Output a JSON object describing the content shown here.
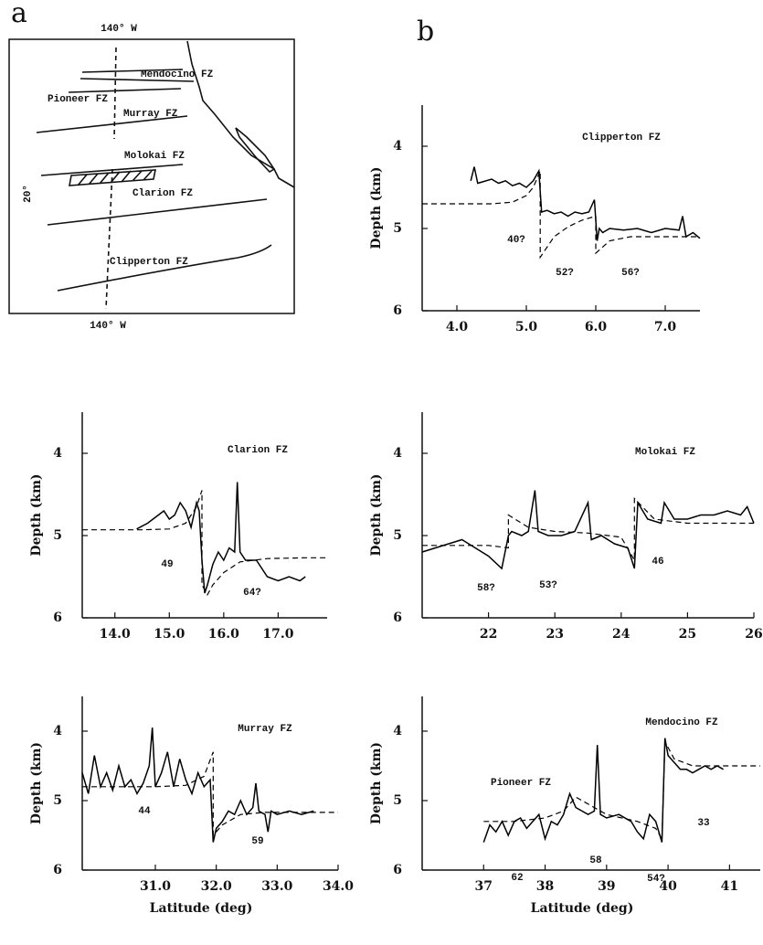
{
  "panel_labels": [
    "a",
    "b"
  ],
  "map": {
    "top_label": "140° W",
    "bottom_label": "140° W",
    "side_label": "20°",
    "zones": [
      "Mendocino FZ",
      "Pioneer FZ",
      "Murray FZ",
      "Molokai FZ",
      "Clarion FZ",
      "Clipperton FZ"
    ]
  },
  "chart_data": [
    {
      "type": "line",
      "title": "Clipperton FZ",
      "ylabel": "Depth (km)",
      "xlim": [
        3.5,
        7.5
      ],
      "ylim": [
        6,
        3.5
      ],
      "yticks": [
        4,
        5,
        6
      ],
      "xticks": [
        {
          "value": 4,
          "label": "4.0"
        },
        {
          "value": 5,
          "label": "5.0"
        },
        {
          "value": 6,
          "label": "6.0"
        },
        {
          "value": 7,
          "label": "7.0"
        }
      ],
      "annotations": [
        "40?",
        "52?",
        "56?"
      ],
      "series": [
        {
          "color": "#000",
          "dashed": false,
          "x": [
            4.2,
            4.25,
            4.3,
            4.5,
            4.6,
            4.7,
            4.8,
            4.9,
            5.0,
            5.1,
            5.18,
            5.22,
            5.3,
            5.4,
            5.5,
            5.6,
            5.7,
            5.8,
            5.9,
            5.98,
            6.02,
            6.05,
            6.1,
            6.2,
            6.4,
            6.6,
            6.8,
            7.0,
            7.2,
            7.25,
            7.3,
            7.4,
            7.5
          ],
          "values": [
            4.42,
            4.25,
            4.45,
            4.4,
            4.45,
            4.42,
            4.48,
            4.45,
            4.5,
            4.42,
            4.3,
            4.8,
            4.78,
            4.82,
            4.8,
            4.85,
            4.8,
            4.82,
            4.8,
            4.65,
            5.15,
            5.0,
            5.05,
            5.0,
            5.02,
            5.0,
            5.05,
            5.0,
            5.02,
            4.85,
            5.1,
            5.05,
            5.12
          ]
        },
        {
          "color": "#000",
          "dashed": true,
          "x": [
            3.5,
            4.5,
            4.8,
            5.0,
            5.1,
            5.2,
            5.2,
            5.4,
            5.6,
            5.8,
            6.0,
            6.0,
            6.2,
            6.5,
            7.0,
            7.5
          ],
          "values": [
            4.7,
            4.7,
            4.68,
            4.6,
            4.5,
            4.3,
            5.35,
            5.1,
            4.98,
            4.9,
            4.85,
            5.3,
            5.15,
            5.1,
            5.1,
            5.1
          ]
        }
      ]
    },
    {
      "type": "line",
      "title": "Clarion FZ",
      "ylabel": "Depth (km)",
      "xlim": [
        13.4,
        17.9
      ],
      "ylim": [
        6,
        3.5
      ],
      "yticks": [
        4,
        5,
        6
      ],
      "xticks": [
        {
          "value": 14,
          "label": "14.0"
        },
        {
          "value": 15,
          "label": "15.0"
        },
        {
          "value": 16,
          "label": "16.0"
        },
        {
          "value": 17,
          "label": "17.0"
        }
      ],
      "annotations": [
        "49",
        "64?"
      ],
      "series": [
        {
          "color": "#000",
          "dashed": false,
          "x": [
            14.4,
            14.6,
            14.8,
            14.9,
            15.0,
            15.1,
            15.2,
            15.3,
            15.4,
            15.5,
            15.55,
            15.6,
            15.65,
            15.7,
            15.8,
            15.9,
            16.0,
            16.1,
            16.2,
            16.25,
            16.3,
            16.4,
            16.6,
            16.8,
            17.0,
            17.2,
            17.4,
            17.5
          ],
          "values": [
            4.92,
            4.85,
            4.75,
            4.7,
            4.8,
            4.75,
            4.6,
            4.7,
            4.9,
            4.6,
            4.7,
            5.3,
            5.7,
            5.6,
            5.35,
            5.2,
            5.3,
            5.15,
            5.2,
            4.35,
            5.2,
            5.3,
            5.3,
            5.5,
            5.55,
            5.5,
            5.55,
            5.5
          ]
        },
        {
          "color": "#000",
          "dashed": true,
          "x": [
            13.4,
            14.5,
            15.0,
            15.3,
            15.5,
            15.6,
            15.6,
            15.7,
            15.8,
            16.0,
            16.3,
            16.8,
            17.5,
            17.9
          ],
          "values": [
            4.93,
            4.93,
            4.92,
            4.85,
            4.65,
            4.45,
            5.6,
            5.72,
            5.6,
            5.45,
            5.32,
            5.28,
            5.27,
            5.27
          ]
        }
      ]
    },
    {
      "type": "line",
      "title": "Molokai FZ",
      "ylabel": "Depth (km)",
      "xlim": [
        21,
        26
      ],
      "ylim": [
        6,
        3.5
      ],
      "yticks": [
        4,
        5,
        6
      ],
      "xticks": [
        22,
        23,
        24,
        25,
        26
      ],
      "annotations": [
        "58?",
        "53?",
        "46"
      ],
      "series": [
        {
          "color": "#000",
          "dashed": false,
          "x": [
            21.0,
            21.2,
            21.4,
            21.6,
            21.8,
            22.0,
            22.2,
            22.3,
            22.35,
            22.5,
            22.6,
            22.7,
            22.75,
            22.9,
            23.1,
            23.3,
            23.5,
            23.55,
            23.7,
            23.9,
            24.1,
            24.2,
            24.25,
            24.4,
            24.6,
            24.65,
            24.8,
            25.0,
            25.2,
            25.4,
            25.6,
            25.8,
            25.9,
            26.0
          ],
          "values": [
            5.2,
            5.15,
            5.1,
            5.05,
            5.15,
            5.25,
            5.4,
            5.0,
            4.95,
            5.0,
            4.95,
            4.45,
            4.95,
            5.0,
            5.0,
            4.95,
            4.6,
            5.05,
            5.0,
            5.1,
            5.15,
            5.4,
            4.6,
            4.8,
            4.85,
            4.6,
            4.8,
            4.8,
            4.75,
            4.75,
            4.7,
            4.75,
            4.65,
            4.85
          ]
        },
        {
          "color": "#000",
          "dashed": true,
          "x": [
            21,
            22,
            22.3,
            22.3,
            22.6,
            23,
            23.5,
            24,
            24.2,
            24.2,
            24.5,
            25,
            26
          ],
          "values": [
            5.12,
            5.12,
            5.15,
            4.75,
            4.9,
            4.95,
            4.97,
            5.02,
            5.3,
            4.55,
            4.8,
            4.85,
            4.85
          ]
        }
      ]
    },
    {
      "type": "line",
      "title": "Murray FZ",
      "ylabel": "Depth (km)",
      "xlabel": "Latitude (deg)",
      "xlim": [
        29.8,
        34.0
      ],
      "ylim": [
        6,
        3.5
      ],
      "yticks": [
        4,
        5,
        6
      ],
      "xticks": [
        {
          "value": 31,
          "label": "31.0"
        },
        {
          "value": 32,
          "label": "32.0"
        },
        {
          "value": 33,
          "label": "33.0"
        },
        {
          "value": 34,
          "label": "34.0"
        }
      ],
      "annotations": [
        "44",
        "59"
      ],
      "series": [
        {
          "color": "#000",
          "dashed": false,
          "x": [
            29.8,
            29.9,
            30.0,
            30.1,
            30.2,
            30.3,
            30.4,
            30.5,
            30.6,
            30.7,
            30.8,
            30.9,
            30.95,
            31.0,
            31.1,
            31.2,
            31.3,
            31.4,
            31.5,
            31.6,
            31.7,
            31.8,
            31.9,
            31.95,
            32.0,
            32.1,
            32.2,
            32.3,
            32.4,
            32.5,
            32.6,
            32.65,
            32.7,
            32.8,
            32.85,
            32.9,
            33.0,
            33.2,
            33.4,
            33.6
          ],
          "values": [
            4.6,
            4.9,
            4.35,
            4.8,
            4.6,
            4.85,
            4.5,
            4.8,
            4.7,
            4.9,
            4.75,
            4.5,
            3.95,
            4.8,
            4.6,
            4.3,
            4.8,
            4.4,
            4.7,
            4.9,
            4.6,
            4.8,
            4.7,
            5.6,
            5.4,
            5.3,
            5.15,
            5.2,
            5.0,
            5.2,
            5.1,
            4.75,
            5.15,
            5.2,
            5.45,
            5.15,
            5.2,
            5.15,
            5.2,
            5.15
          ]
        },
        {
          "color": "#000",
          "dashed": true,
          "x": [
            29.8,
            30.5,
            31.0,
            31.5,
            31.8,
            31.95,
            31.95,
            32.1,
            32.4,
            32.8,
            33.5,
            34.0
          ],
          "values": [
            4.8,
            4.8,
            4.8,
            4.78,
            4.65,
            4.3,
            5.5,
            5.35,
            5.2,
            5.17,
            5.17,
            5.17
          ]
        }
      ]
    },
    {
      "type": "line",
      "title": "Mendocino FZ",
      "ylabel": "Depth (km)",
      "xlabel": "Latitude (deg)",
      "xlim": [
        36,
        41.5
      ],
      "ylim": [
        6,
        3.5
      ],
      "yticks": [
        4,
        5,
        6
      ],
      "xticks": [
        37,
        38,
        39,
        40,
        41
      ],
      "annotations": [
        "Pioneer FZ",
        "62",
        "58",
        "54?",
        "33"
      ],
      "series": [
        {
          "color": "#000",
          "dashed": false,
          "x": [
            37,
            37.1,
            37.2,
            37.3,
            37.4,
            37.5,
            37.6,
            37.7,
            37.8,
            37.9,
            38.0,
            38.1,
            38.2,
            38.3,
            38.4,
            38.5,
            38.6,
            38.7,
            38.8,
            38.85,
            38.9,
            39.0,
            39.2,
            39.4,
            39.5,
            39.6,
            39.7,
            39.8,
            39.9,
            39.95,
            40.0,
            40.1,
            40.2,
            40.3,
            40.4,
            40.5,
            40.6,
            40.7,
            40.8,
            40.9
          ],
          "values": [
            5.6,
            5.35,
            5.45,
            5.3,
            5.5,
            5.3,
            5.25,
            5.4,
            5.3,
            5.2,
            5.55,
            5.3,
            5.35,
            5.2,
            4.9,
            5.1,
            5.15,
            5.2,
            5.15,
            4.2,
            5.2,
            5.25,
            5.2,
            5.3,
            5.45,
            5.55,
            5.2,
            5.3,
            5.6,
            4.1,
            4.35,
            4.45,
            4.55,
            4.55,
            4.6,
            4.55,
            4.5,
            4.55,
            4.5,
            4.55
          ]
        },
        {
          "color": "#000",
          "dashed": true,
          "x": [
            37,
            37.5,
            38,
            38.3,
            38.5,
            39,
            39.5,
            39.8,
            39.9,
            39.95,
            40.1,
            40.4,
            41,
            41.5
          ],
          "values": [
            5.3,
            5.3,
            5.25,
            5.15,
            4.95,
            5.2,
            5.3,
            5.4,
            5.55,
            4.15,
            4.4,
            4.5,
            4.5,
            4.5
          ]
        }
      ]
    }
  ]
}
